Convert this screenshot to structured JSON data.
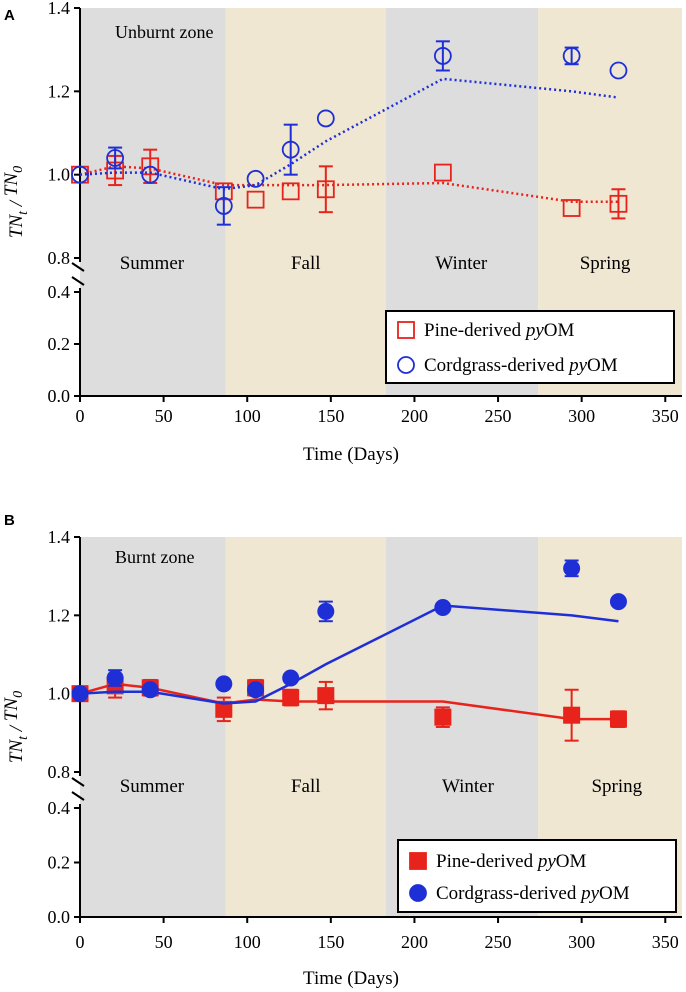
{
  "figure": {
    "colors": {
      "pine": "#e8231b",
      "cordgrass": "#1f2fd6",
      "summer_bg": "#dddddd",
      "fall_bg": "#efe7d2",
      "winter_bg": "#dddddd",
      "spring_bg": "#efe7d2"
    }
  },
  "chart_data": [
    {
      "type": "scatter",
      "panel_label": "A",
      "zone_label": "Unburnt zone",
      "marker_style": "open",
      "line_style": "dotted",
      "xlabel": "Time (Days)",
      "ylabel_base": "TN",
      "ylabel_sub_top": "t",
      "ylabel_sep": " / ",
      "ylabel_sub_bottom": "0",
      "xlim": [
        0,
        360
      ],
      "x_ticks": [
        0,
        50,
        100,
        150,
        200,
        250,
        300,
        350
      ],
      "x_tick_labels": [
        "0",
        "50",
        "100",
        "150",
        "200",
        "250",
        "300",
        "350"
      ],
      "y_axis_break": true,
      "y_lower_range": [
        0.0,
        0.4
      ],
      "y_upper_range": [
        0.8,
        1.4
      ],
      "y_lower_ticks": [
        0.0,
        0.2,
        0.4
      ],
      "y_lower_tick_labels": [
        "0.0",
        "0.2",
        "0.4"
      ],
      "y_upper_ticks": [
        0.8,
        1.0,
        1.2,
        1.4
      ],
      "y_upper_tick_labels": [
        "0.8",
        "1.0",
        "1.2",
        "1.4"
      ],
      "seasons": [
        {
          "name": "Summer",
          "start": 0,
          "end": 87,
          "label_x": 43
        },
        {
          "name": "Fall",
          "start": 87,
          "end": 183,
          "label_x": 135
        },
        {
          "name": "Winter",
          "start": 183,
          "end": 274,
          "label_x": 228
        },
        {
          "name": "Spring",
          "start": 274,
          "end": 360,
          "label_x": 314
        }
      ],
      "series": [
        {
          "name": "Pine-derived pyOM",
          "legend_prefix": "Pine-derived ",
          "legend_italic": "py",
          "legend_suffix": "OM",
          "marker": "square",
          "x": [
            0,
            21,
            42,
            86,
            105,
            126,
            147,
            217,
            294,
            322
          ],
          "y": [
            1.0,
            1.01,
            1.02,
            0.96,
            0.94,
            0.96,
            0.965,
            1.005,
            0.92,
            0.93
          ],
          "err": [
            0.0,
            0.035,
            0.04,
            0.0,
            0.0,
            0.0,
            0.055,
            0.0,
            0.0,
            0.035
          ],
          "trend_x": [
            0,
            21,
            42,
            86,
            105,
            126,
            147,
            217,
            294,
            322
          ],
          "trend_y": [
            1.0,
            1.02,
            1.015,
            0.975,
            0.975,
            0.975,
            0.975,
            0.98,
            0.935,
            0.935
          ]
        },
        {
          "name": "Cordgrass-derived pyOM",
          "legend_prefix": "Cordgrass-derived ",
          "legend_italic": "py",
          "legend_suffix": "OM",
          "marker": "circle",
          "x": [
            0,
            21,
            42,
            86,
            105,
            126,
            147,
            217,
            294,
            322
          ],
          "y": [
            1.0,
            1.04,
            1.0,
            0.925,
            0.99,
            1.06,
            1.135,
            1.285,
            1.285,
            1.25
          ],
          "err": [
            0.0,
            0.025,
            0.0,
            0.045,
            0.0,
            0.06,
            0.0,
            0.035,
            0.02,
            0.0
          ],
          "trend_x": [
            0,
            21,
            42,
            86,
            105,
            126,
            147,
            217,
            294,
            322
          ],
          "trend_y": [
            1.0,
            1.005,
            1.005,
            0.965,
            0.975,
            1.025,
            1.08,
            1.23,
            1.2,
            1.185
          ]
        }
      ]
    },
    {
      "type": "scatter",
      "panel_label": "B",
      "zone_label": "Burnt zone",
      "marker_style": "filled",
      "line_style": "solid",
      "xlabel": "Time (Days)",
      "ylabel_base": "TN",
      "ylabel_sub_top": "t",
      "ylabel_sep": " / ",
      "ylabel_sub_bottom": "0",
      "xlim": [
        0,
        360
      ],
      "x_ticks": [
        0,
        50,
        100,
        150,
        200,
        250,
        300,
        350
      ],
      "x_tick_labels": [
        "0",
        "50",
        "100",
        "150",
        "200",
        "250",
        "300",
        "350"
      ],
      "y_axis_break": true,
      "y_lower_range": [
        0.0,
        0.4
      ],
      "y_upper_range": [
        0.8,
        1.4
      ],
      "y_lower_ticks": [
        0.0,
        0.2,
        0.4
      ],
      "y_lower_tick_labels": [
        "0.0",
        "0.2",
        "0.4"
      ],
      "y_upper_ticks": [
        0.8,
        1.0,
        1.2,
        1.4
      ],
      "y_upper_tick_labels": [
        "0.8",
        "1.0",
        "1.2",
        "1.4"
      ],
      "seasons": [
        {
          "name": "Summer",
          "start": 0,
          "end": 87,
          "label_x": 43
        },
        {
          "name": "Fall",
          "start": 87,
          "end": 183,
          "label_x": 135
        },
        {
          "name": "Winter",
          "start": 183,
          "end": 274,
          "label_x": 232
        },
        {
          "name": "Spring",
          "start": 274,
          "end": 360,
          "label_x": 321
        }
      ],
      "series": [
        {
          "name": "Pine-derived pyOM",
          "legend_prefix": "Pine-derived ",
          "legend_italic": "py",
          "legend_suffix": "OM",
          "marker": "square",
          "x": [
            0,
            21,
            42,
            86,
            105,
            126,
            147,
            217,
            294,
            322
          ],
          "y": [
            1.0,
            1.02,
            1.015,
            0.96,
            1.015,
            0.99,
            0.995,
            0.94,
            0.945,
            0.935
          ],
          "err": [
            0.0,
            0.03,
            0.02,
            0.03,
            0.02,
            0.02,
            0.035,
            0.025,
            0.065,
            0.02
          ],
          "trend_x": [
            0,
            21,
            42,
            86,
            105,
            126,
            147,
            217,
            294,
            322
          ],
          "trend_y": [
            1.0,
            1.025,
            1.015,
            0.975,
            0.985,
            0.98,
            0.98,
            0.98,
            0.935,
            0.935
          ]
        },
        {
          "name": "Cordgrass-derived pyOM",
          "legend_prefix": "Cordgrass-derived ",
          "legend_italic": "py",
          "legend_suffix": "OM",
          "marker": "circle",
          "x": [
            0,
            21,
            42,
            86,
            105,
            126,
            147,
            217,
            294,
            322
          ],
          "y": [
            1.0,
            1.04,
            1.01,
            1.025,
            1.01,
            1.04,
            1.21,
            1.22,
            1.32,
            1.235
          ],
          "err": [
            0.0,
            0.02,
            0.0,
            0.0,
            0.01,
            0.0,
            0.025,
            0.0,
            0.02,
            0.0
          ],
          "trend_x": [
            0,
            21,
            42,
            86,
            105,
            126,
            147,
            217,
            294,
            322
          ],
          "trend_y": [
            1.0,
            1.005,
            1.005,
            0.975,
            0.98,
            1.025,
            1.075,
            1.225,
            1.2,
            1.185
          ]
        }
      ]
    }
  ]
}
